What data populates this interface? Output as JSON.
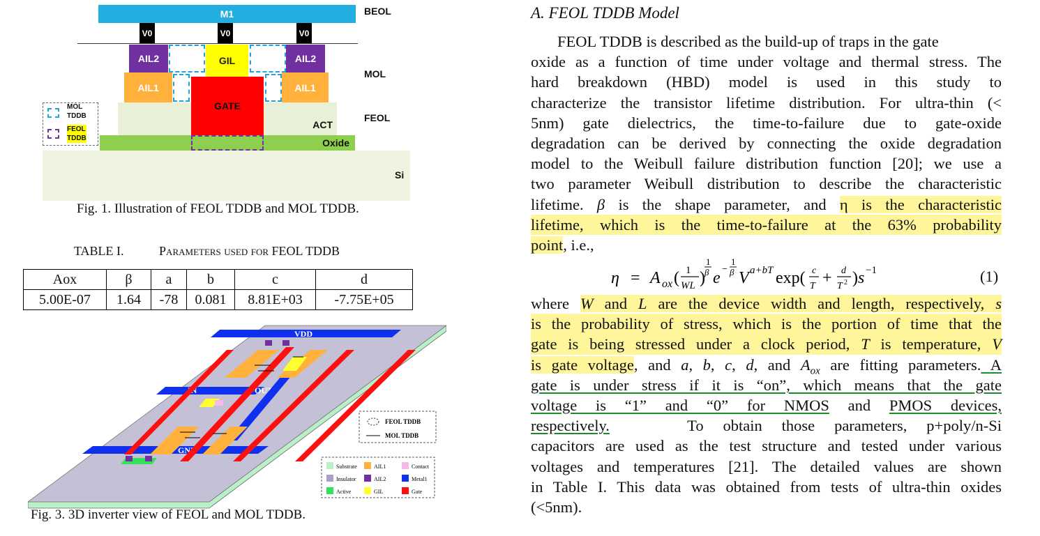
{
  "fig1": {
    "m1": "M1",
    "v0": [
      "V0",
      "V0",
      "V0"
    ],
    "ail2": "AIL2",
    "gil": "GIL",
    "ail1": "AIL1",
    "gate": "GATE",
    "act": "ACT",
    "oxide": "Oxide",
    "si": "Si",
    "beol": "BEOL",
    "mol": "MOL",
    "feol": "FEOL",
    "legend_mol": [
      "MOL",
      "TDDB"
    ],
    "legend_feol": [
      "FEOL",
      "TDDB"
    ],
    "caption": "Fig. 1. Illustration of FEOL TDDB and MOL TDDB.",
    "colors": {
      "m1": "#22aee0",
      "v0": "#000000",
      "ail2": "#7030a0",
      "gil": "#ffff00",
      "ail1": "#ffb13b",
      "gate": "#ff0000",
      "act": "#e8f0d8",
      "oxide": "#8fcf4f",
      "si": "#eef3e0"
    }
  },
  "table": {
    "title_num": "TABLE I.",
    "title_text": "Parameters used for FEOL TDDB",
    "headers": [
      "Aox",
      "β",
      "a",
      "b",
      "c",
      "d"
    ],
    "row": [
      "5.00E-07",
      "1.64",
      "-78",
      "0.081",
      "8.81E+03",
      "-7.75E+05"
    ]
  },
  "fig3": {
    "vdd": "VDD",
    "in": "IN",
    "out": "OUT",
    "gnd": "GND",
    "legend_feol": "FEOL TDDB",
    "legend_mol": "MOL TDDB",
    "legend_items": [
      "Substrate",
      "AIL1",
      "Contact",
      "Insulator",
      "AIL2",
      "Metal1",
      "Active",
      "GIL",
      "Gate"
    ],
    "legend_colors": [
      "#b9f0c8",
      "#ffb13b",
      "#f6b8e6",
      "#a8a0c8",
      "#7030a0",
      "#1030f0",
      "#36e05a",
      "#ffff30",
      "#ff1010"
    ],
    "caption": "Fig. 3. 3D inverter view of FEOL and MOL TDDB."
  },
  "text": {
    "heading": "A. FEOL TDDB Model",
    "p1": [
      "FEOL TDDB is described as the build-up of traps in the gate",
      "oxide as a function of time under voltage and thermal stress. The",
      "hard breakdown (HBD) model is used in this study to",
      "characterize the transistor lifetime distribution. For ultra-thin (<",
      "5nm) gate dielectrics, the time-to-failure due to gate-oxide",
      "degradation can be derived by connecting the oxide degradation",
      "model to the Weibull failure distribution function [20]; we use a",
      "two parameter Weibull distribution to describe the characteristic"
    ],
    "l9a": "lifetime. ",
    "l9b": "β",
    "l9c": " is the shape parameter, and ",
    "l9d": "η is the characteristic",
    "l10": "lifetime, which is the time-to-failure at the 63% probability",
    "l11a": "point",
    "l11b": ", i.e.,",
    "eq_number": "(1)",
    "w1a": "where ",
    "w1b": "W",
    "w1c": " and ",
    "w1d": "L",
    "w1e": " are the device width and length, respectively, ",
    "w1f": "s",
    "w2": "is the probability of stress, which is the portion of time that the",
    "w3a": "gate is being stressed under a clock period, ",
    "w3b": "T",
    "w3c": " is temperature, ",
    "w3d": "V",
    "w4a": "is gate voltage",
    "w4b": ", and ",
    "w4c": "a",
    "w4d": ", ",
    "w4e": "b",
    "w4f": ", ",
    "w4g": "c",
    "w4h": ", ",
    "w4i": "d",
    "w4j": ", and ",
    "w4k": "A",
    "w4l": "ox",
    "w4m": " are fitting parameters.",
    "w4n": " A",
    "w5": "gate is under stress if it is “on”, which means that the gate",
    "w6a": "voltage is “1” and “0” for NMOS",
    "w6b": " and ",
    "w6c": "PMOS devices,",
    "w7a": "respectively.",
    "w7b": "    To obtain those parameters, p+poly/n-Si",
    "p3": [
      "capacitors are used as the test structure and tested under various",
      "voltages and temperatures [21]. The detailed values are shown",
      "in Table I.  This data was obtained from tests of ultra-thin oxides",
      "(<5nm)."
    ]
  }
}
